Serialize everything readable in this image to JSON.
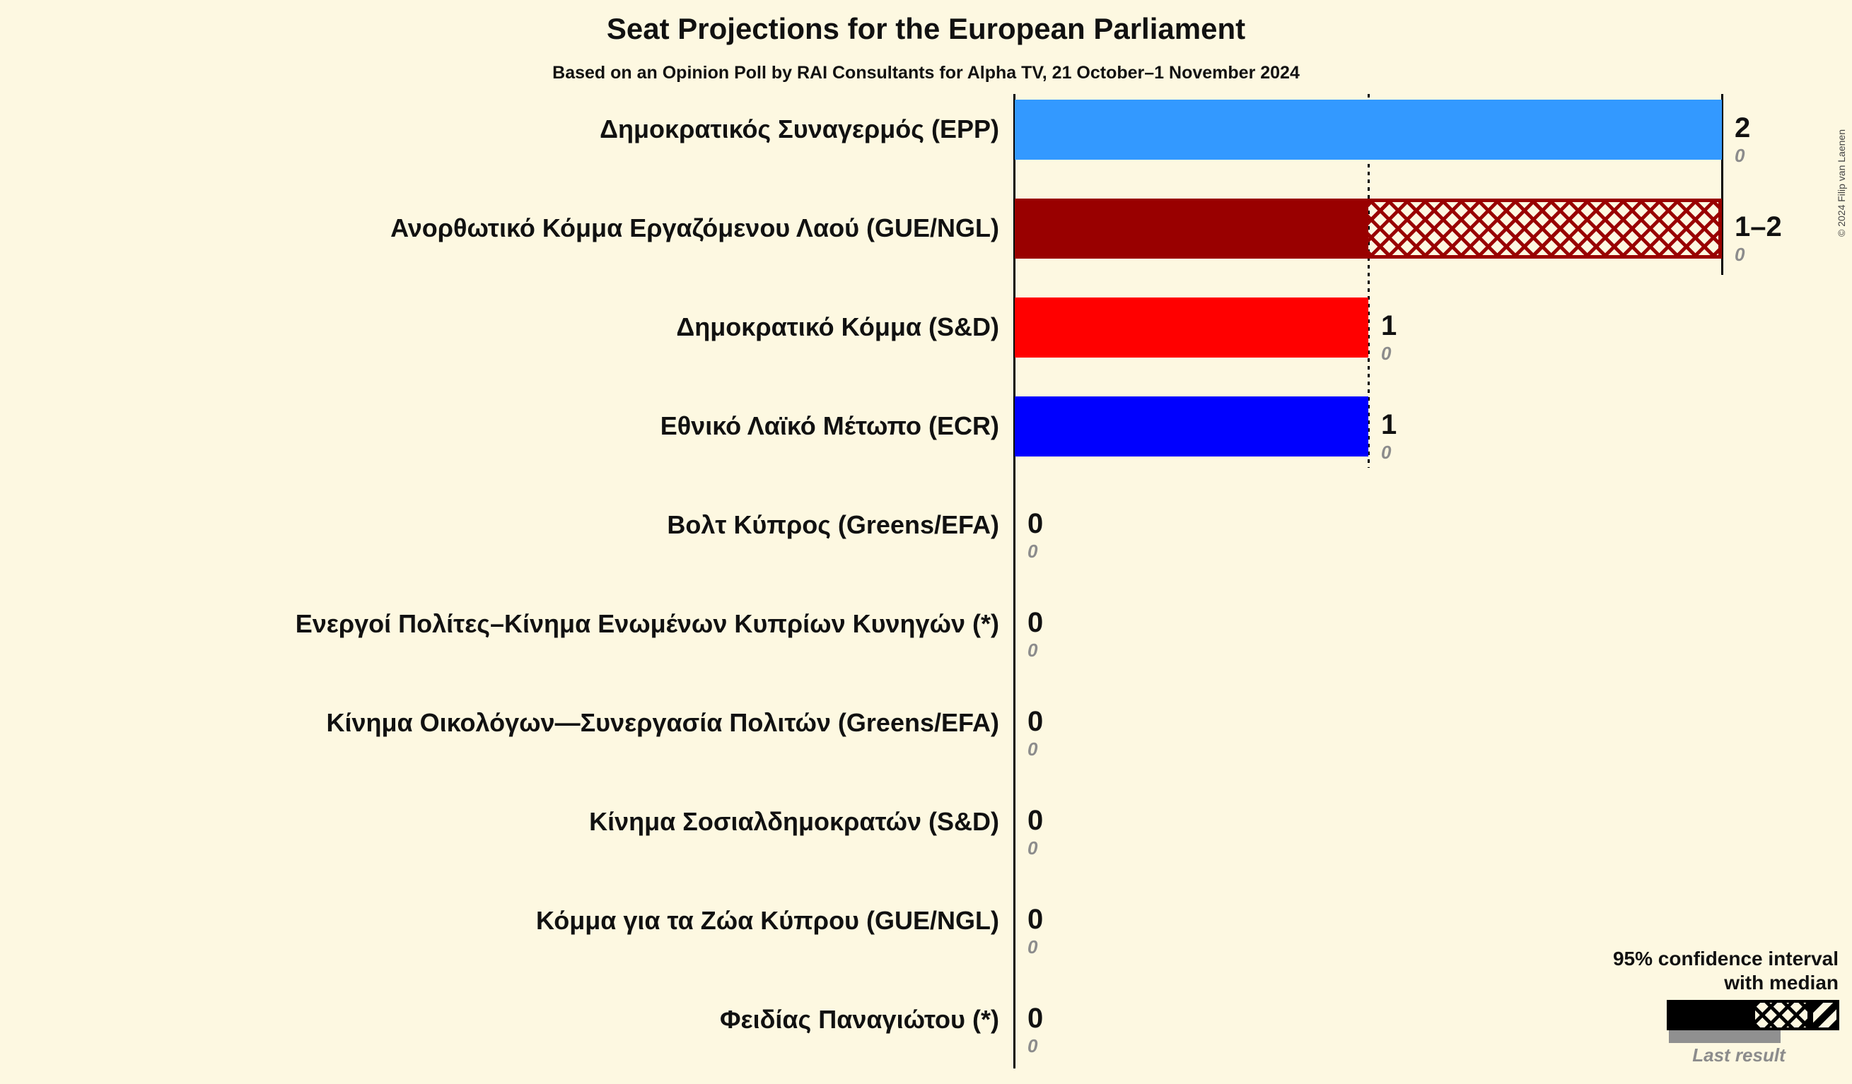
{
  "title": "Seat Projections for the European Parliament",
  "subtitle": "Based on an Opinion Poll by RAI Consultants for Alpha TV, 21 October–1 November 2024",
  "copyright": "© 2024 Filip van Laenen",
  "legend": {
    "ci_label_line1": "95% confidence interval",
    "ci_label_line2": "with median",
    "last_result_label": "Last result"
  },
  "colors": {
    "background": "#FDF8E1",
    "epp_blue": "#3399FF",
    "gue_dark_red": "#990000",
    "sd_red": "#FF0000",
    "ecr_blue": "#0000FF",
    "last_result_gray": "#8C8C8C",
    "line_black": "#000000"
  },
  "chart_data": {
    "type": "bar",
    "orientation": "horizontal",
    "x_axis": {
      "min": 0,
      "max": 2,
      "gridlines": [
        {
          "x": 0,
          "style": "solid"
        },
        {
          "x": 1,
          "style": "dotted"
        },
        {
          "x": 2,
          "style": "solid"
        }
      ]
    },
    "legend_note": "solid = projection, crosshatch = 95% confidence interval with median, gray underbar = last result",
    "bars": [
      {
        "label": "Δημοκρατικός Συναγερμός (EPP)",
        "ci_low": 2,
        "ci_high": 2,
        "median": 2,
        "last_result": 0,
        "value_label": "2",
        "last_result_label": "0",
        "color": "#3399FF"
      },
      {
        "label": "Ανορθωτικό Κόμμα Εργαζόμενου Λαού (GUE/NGL)",
        "ci_low": 1,
        "ci_high": 2,
        "median": 1,
        "last_result": 0,
        "value_label": "1–2",
        "last_result_label": "0",
        "color": "#990000"
      },
      {
        "label": "Δημοκρατικό Κόμμα (S&D)",
        "ci_low": 1,
        "ci_high": 1,
        "median": 1,
        "last_result": 0,
        "value_label": "1",
        "last_result_label": "0",
        "color": "#FF0000"
      },
      {
        "label": "Εθνικό Λαϊκό Μέτωπο (ECR)",
        "ci_low": 1,
        "ci_high": 1,
        "median": 1,
        "last_result": 0,
        "value_label": "1",
        "last_result_label": "0",
        "color": "#0000FF"
      },
      {
        "label": "Βολτ Κύπρος (Greens/EFA)",
        "ci_low": 0,
        "ci_high": 0,
        "median": 0,
        "last_result": 0,
        "value_label": "0",
        "last_result_label": "0",
        "color": null
      },
      {
        "label": "Ενεργοί Πολίτες–Κίνημα Ενωμένων Κυπρίων Κυνηγών (*)",
        "ci_low": 0,
        "ci_high": 0,
        "median": 0,
        "last_result": 0,
        "value_label": "0",
        "last_result_label": "0",
        "color": null
      },
      {
        "label": "Κίνημα Οικολόγων—Συνεργασία Πολιτών (Greens/EFA)",
        "ci_low": 0,
        "ci_high": 0,
        "median": 0,
        "last_result": 0,
        "value_label": "0",
        "last_result_label": "0",
        "color": null
      },
      {
        "label": "Κίνημα Σοσιαλδημοκρατών (S&D)",
        "ci_low": 0,
        "ci_high": 0,
        "median": 0,
        "last_result": 0,
        "value_label": "0",
        "last_result_label": "0",
        "color": null
      },
      {
        "label": "Κόμμα για τα Ζώα Κύπρου (GUE/NGL)",
        "ci_low": 0,
        "ci_high": 0,
        "median": 0,
        "last_result": 0,
        "value_label": "0",
        "last_result_label": "0",
        "color": null
      },
      {
        "label": "Φειδίας Παναγιώτου (*)",
        "ci_low": 0,
        "ci_high": 0,
        "median": 0,
        "last_result": 0,
        "value_label": "0",
        "last_result_label": "0",
        "color": null
      }
    ]
  }
}
